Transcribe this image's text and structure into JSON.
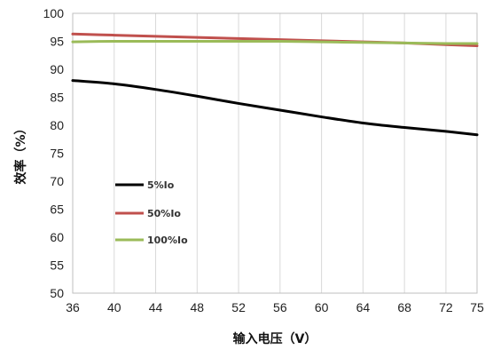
{
  "chart_data": {
    "type": "line",
    "title": "",
    "xlabel": "输入电压（V）",
    "ylabel": "效率（%）",
    "xlim": [
      36,
      75
    ],
    "ylim": [
      50,
      100
    ],
    "x_ticks": [
      36,
      40,
      44,
      48,
      52,
      56,
      60,
      64,
      68,
      72,
      75
    ],
    "y_ticks": [
      50,
      55,
      60,
      65,
      70,
      75,
      80,
      85,
      90,
      95,
      100
    ],
    "grid": "vertical",
    "legend": "bottom-left",
    "series": [
      {
        "name": "5%Io",
        "color": "#000000",
        "x": [
          36,
          40,
          44,
          48,
          52,
          56,
          60,
          64,
          68,
          72,
          75
        ],
        "y": [
          88.0,
          87.4,
          86.4,
          85.2,
          83.9,
          82.7,
          81.5,
          80.4,
          79.6,
          78.9,
          78.3
        ]
      },
      {
        "name": "50%Io",
        "color": "#c0504d",
        "x": [
          36,
          40,
          44,
          48,
          52,
          56,
          60,
          64,
          68,
          72,
          75
        ],
        "y": [
          96.3,
          96.1,
          95.9,
          95.7,
          95.5,
          95.3,
          95.1,
          94.9,
          94.7,
          94.4,
          94.2
        ]
      },
      {
        "name": "100%Io",
        "color": "#9bbb59",
        "x": [
          36,
          40,
          44,
          48,
          52,
          56,
          60,
          64,
          68,
          72,
          75
        ],
        "y": [
          94.9,
          95.0,
          95.0,
          95.0,
          95.0,
          95.0,
          94.9,
          94.8,
          94.7,
          94.6,
          94.6
        ]
      }
    ]
  }
}
